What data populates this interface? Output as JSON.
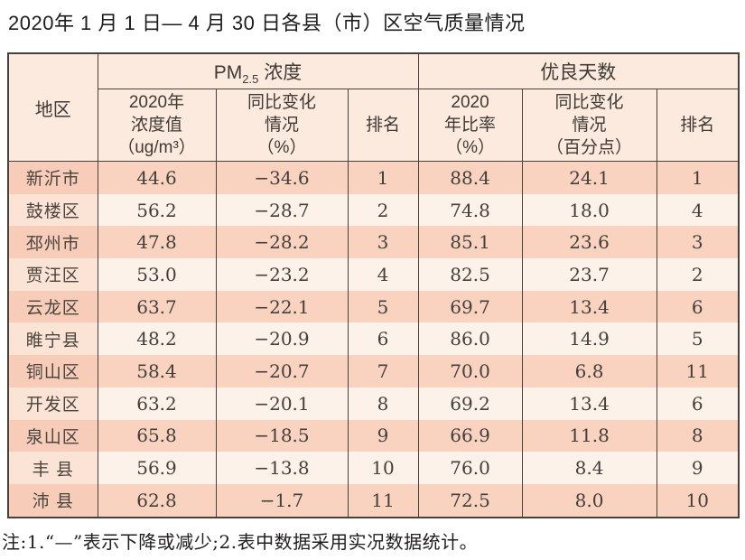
{
  "title": "2020年 1 月 1 日— 4 月 30 日各县（市）区空气质量情况",
  "table": {
    "header": {
      "region": "地区",
      "pm_group": {
        "prefix": "PM",
        "sub": "2.5",
        "suffix": " 浓度"
      },
      "good_group": "优良天数",
      "pm_value": "2020年\n浓度值\n（ug/m³）",
      "pm_change": "同比变化\n情况\n（%）",
      "pm_rank": "排名",
      "good_ratio": "2020\n年比率\n（%）",
      "good_change": "同比变化\n情况\n（百分点）",
      "good_rank": "排名"
    },
    "rows": [
      {
        "region": "新沂市",
        "pm_value": "44.6",
        "pm_change": "−34.6",
        "pm_rank": "1",
        "good_ratio": "88.4",
        "good_change": "24.1",
        "good_rank": "1"
      },
      {
        "region": "鼓楼区",
        "pm_value": "56.2",
        "pm_change": "−28.7",
        "pm_rank": "2",
        "good_ratio": "74.8",
        "good_change": "18.0",
        "good_rank": "4"
      },
      {
        "region": "邳州市",
        "pm_value": "47.8",
        "pm_change": "−28.2",
        "pm_rank": "3",
        "good_ratio": "85.1",
        "good_change": "23.6",
        "good_rank": "3"
      },
      {
        "region": "贾汪区",
        "pm_value": "53.0",
        "pm_change": "−23.2",
        "pm_rank": "4",
        "good_ratio": "82.5",
        "good_change": "23.7",
        "good_rank": "2"
      },
      {
        "region": "云龙区",
        "pm_value": "63.7",
        "pm_change": "−22.1",
        "pm_rank": "5",
        "good_ratio": "69.7",
        "good_change": "13.4",
        "good_rank": "6"
      },
      {
        "region": "睢宁县",
        "pm_value": "48.2",
        "pm_change": "−20.9",
        "pm_rank": "6",
        "good_ratio": "86.0",
        "good_change": "14.9",
        "good_rank": "5"
      },
      {
        "region": "铜山区",
        "pm_value": "58.4",
        "pm_change": "−20.7",
        "pm_rank": "7",
        "good_ratio": "70.0",
        "good_change": "6.8",
        "good_rank": "11"
      },
      {
        "region": "开发区",
        "pm_value": "63.2",
        "pm_change": "−20.1",
        "pm_rank": "8",
        "good_ratio": "69.2",
        "good_change": "13.4",
        "good_rank": "6"
      },
      {
        "region": "泉山区",
        "pm_value": "65.8",
        "pm_change": "−18.5",
        "pm_rank": "9",
        "good_ratio": "66.9",
        "good_change": "11.8",
        "good_rank": "8"
      },
      {
        "region": "丰 县",
        "pm_value": "56.9",
        "pm_change": "−13.8",
        "pm_rank": "10",
        "good_ratio": "76.0",
        "good_change": "8.4",
        "good_rank": "9"
      },
      {
        "region": "沛 县",
        "pm_value": "62.8",
        "pm_change": "−1.7",
        "pm_rank": "11",
        "good_ratio": "72.5",
        "good_change": "8.0",
        "good_rank": "10"
      }
    ]
  },
  "note": "注:1.“—”表示下降或减少;2.表中数据采用实况数据统计。",
  "colors": {
    "header_bg": "#fceade",
    "row_odd_bg": "#f9d2c0",
    "row_even_bg": "#fdf2ea",
    "region_odd_bg": "#f7ccb9",
    "region_even_bg": "#fbe3d6",
    "border": "#47413b"
  }
}
